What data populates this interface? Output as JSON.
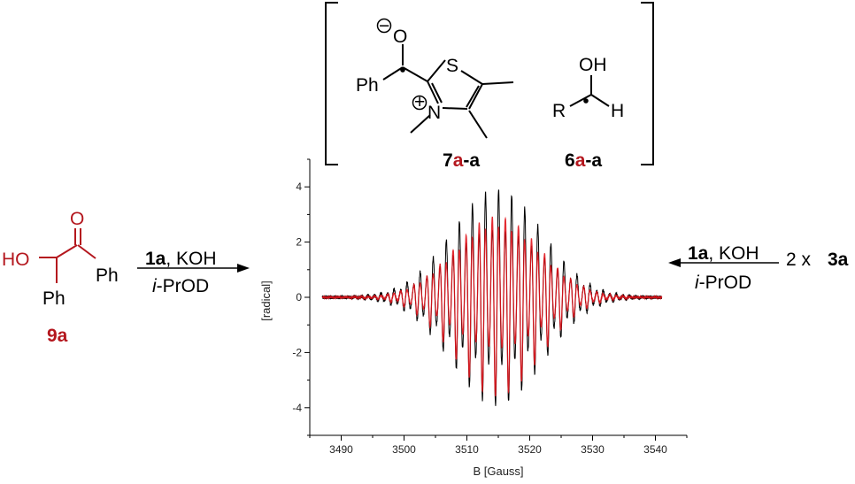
{
  "scheme": {
    "left_reactant": {
      "compound_number": "9a",
      "labels": {
        "hydroxyl": "HO",
        "carbonyl_o": "O",
        "phenyl_top": "Ph",
        "phenyl_bottom": "Ph"
      },
      "color": "#b4171e"
    },
    "left_arrow": {
      "reagent_number": "1a",
      "reagent_rest": ", KOH",
      "solvent_prefix": "i",
      "solvent_rest": "-PrOD"
    },
    "right_arrow": {
      "reagent_number": "1a",
      "reagent_rest": ", KOH",
      "solvent_prefix": "i",
      "solvent_rest": "-PrOD",
      "stoich_prefix": "2 x",
      "substrate_number": "3a"
    },
    "bracket": {
      "radical_7": {
        "number_prefix": "7",
        "number_highlight": "a",
        "number_suffix": "-a",
        "labels": {
          "oxide": "O",
          "minus": "−",
          "phenyl": "Ph",
          "sulfur": "S",
          "nitrogen": "N",
          "plus": "+"
        }
      },
      "radical_6": {
        "number_prefix": "6",
        "number_highlight": "a",
        "number_suffix": "-a",
        "labels": {
          "hydroxyl": "OH",
          "r_group": "R",
          "hydrogen": "H"
        }
      }
    }
  },
  "chart_data": {
    "type": "line",
    "xlabel": "B [Gauss]",
    "ylabel": "[radical]",
    "xlim": [
      3485,
      3545
    ],
    "ylim": [
      -5,
      5
    ],
    "xticks": [
      3490,
      3500,
      3510,
      3520,
      3530,
      3540
    ],
    "yticks": [
      -4,
      -2,
      0,
      2,
      4
    ],
    "series": [
      {
        "color": "#000000",
        "x_range": [
          3487,
          3541
        ],
        "center": 3514.8,
        "peak": 4.2,
        "envelope_width": 7.2,
        "line_spacing": 1.04
      },
      {
        "color": "#e0141c",
        "x_range": [
          3487,
          3541
        ],
        "center": 3514.8,
        "peak": 3.6,
        "envelope_width": 6.8,
        "line_spacing": 1.04
      }
    ]
  }
}
